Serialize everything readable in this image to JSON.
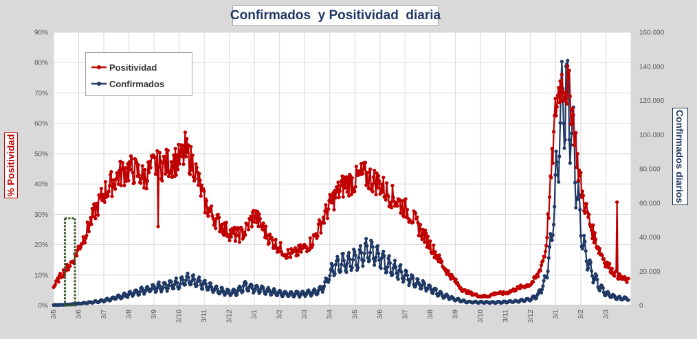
{
  "chart_data": {
    "type": "line",
    "title": "Confirmados  y Positividad  diaria",
    "ylabel_left": "% Positividad",
    "ylabel_right": "Confirmados diarios",
    "y_left_ticks": [
      "0%",
      "10%",
      "20%",
      "30%",
      "40%",
      "50%",
      "60%",
      "70%",
      "80%",
      "90%"
    ],
    "y_right_ticks": [
      "0",
      "20.000",
      "40.000",
      "60.000",
      "80.000",
      "100.000",
      "120.000",
      "140.000",
      "160.000"
    ],
    "x_ticks": [
      "3/5",
      "3/6",
      "3/7",
      "3/8",
      "3/9",
      "3/10",
      "3/11",
      "3/12",
      "3/1",
      "3/2",
      "3/3",
      "3/4",
      "3/5",
      "3/6",
      "3/7",
      "3/8",
      "3/9",
      "3/10",
      "3/11",
      "3/12",
      "3/1",
      "3/2",
      "3/3"
    ],
    "ylim_left": [
      0,
      90
    ],
    "ylim_right": [
      0,
      160000
    ],
    "legend": {
      "position": "top-left"
    },
    "grid": true,
    "colors": {
      "positividad": "#c00000",
      "confirmados": "#1f3864",
      "highlight": "#375623"
    },
    "series": [
      {
        "name": "Positividad",
        "axis": "left",
        "unit": "%",
        "anchors_month_value": [
          [
            0,
            6
          ],
          [
            0.3,
            10
          ],
          [
            0.6,
            13
          ],
          [
            0.8,
            15
          ],
          [
            1.0,
            19
          ],
          [
            1.3,
            24
          ],
          [
            1.6,
            30
          ],
          [
            2.0,
            37
          ],
          [
            2.3,
            40
          ],
          [
            2.6,
            43
          ],
          [
            3.0,
            45
          ],
          [
            3.3,
            44
          ],
          [
            3.6,
            42
          ],
          [
            4.0,
            46
          ],
          [
            4.3,
            46
          ],
          [
            4.6,
            47
          ],
          [
            5.0,
            48
          ],
          [
            5.3,
            50
          ],
          [
            5.6,
            46
          ],
          [
            5.8,
            40
          ],
          [
            6.0,
            34
          ],
          [
            6.3,
            30
          ],
          [
            6.6,
            27
          ],
          [
            7.0,
            24
          ],
          [
            7.3,
            23
          ],
          [
            7.6,
            24
          ],
          [
            8.0,
            30
          ],
          [
            8.3,
            26
          ],
          [
            8.6,
            22
          ],
          [
            9.0,
            19
          ],
          [
            9.3,
            17
          ],
          [
            9.6,
            17
          ],
          [
            10.0,
            19
          ],
          [
            10.3,
            21
          ],
          [
            10.6,
            26
          ],
          [
            11.0,
            33
          ],
          [
            11.3,
            37
          ],
          [
            11.6,
            40
          ],
          [
            12.0,
            41
          ],
          [
            12.3,
            43
          ],
          [
            12.6,
            42
          ],
          [
            13.0,
            40
          ],
          [
            13.3,
            37
          ],
          [
            13.6,
            35
          ],
          [
            14.0,
            32
          ],
          [
            14.3,
            29
          ],
          [
            14.6,
            25
          ],
          [
            15.0,
            20
          ],
          [
            15.3,
            16
          ],
          [
            15.6,
            12
          ],
          [
            16.0,
            8
          ],
          [
            16.3,
            5
          ],
          [
            16.6,
            4
          ],
          [
            17.0,
            3
          ],
          [
            17.3,
            3
          ],
          [
            17.6,
            4
          ],
          [
            18.0,
            4
          ],
          [
            18.3,
            5
          ],
          [
            18.6,
            6
          ],
          [
            19.0,
            7
          ],
          [
            19.3,
            10
          ],
          [
            19.6,
            18
          ],
          [
            19.8,
            40
          ],
          [
            20.0,
            65
          ],
          [
            20.2,
            74
          ],
          [
            20.5,
            72
          ],
          [
            20.7,
            62
          ],
          [
            20.9,
            45
          ],
          [
            21.1,
            35
          ],
          [
            21.4,
            26
          ],
          [
            21.7,
            19
          ],
          [
            22.0,
            14
          ],
          [
            22.3,
            11
          ],
          [
            22.6,
            9
          ],
          [
            22.9,
            8
          ]
        ],
        "spikes_month_value": [
          [
            4.15,
            26
          ],
          [
            5.25,
            57
          ],
          [
            22.45,
            34
          ]
        ]
      },
      {
        "name": "Confirmados",
        "axis": "right",
        "unit": "casos",
        "anchors_month_value": [
          [
            0,
            200
          ],
          [
            0.5,
            400
          ],
          [
            1.0,
            1000
          ],
          [
            1.5,
            1800
          ],
          [
            2.0,
            2800
          ],
          [
            2.5,
            4500
          ],
          [
            3.0,
            6500
          ],
          [
            3.5,
            8500
          ],
          [
            4.0,
            10500
          ],
          [
            4.5,
            11500
          ],
          [
            5.0,
            13000
          ],
          [
            5.3,
            15000
          ],
          [
            5.6,
            14000
          ],
          [
            6.0,
            12000
          ],
          [
            6.5,
            9000
          ],
          [
            7.0,
            7500
          ],
          [
            7.3,
            8000
          ],
          [
            7.6,
            11500
          ],
          [
            8.0,
            10000
          ],
          [
            8.5,
            8500
          ],
          [
            9.0,
            7000
          ],
          [
            9.5,
            6500
          ],
          [
            10.0,
            7000
          ],
          [
            10.5,
            8000
          ],
          [
            10.8,
            12000
          ],
          [
            11.0,
            18000
          ],
          [
            11.3,
            24000
          ],
          [
            11.6,
            25000
          ],
          [
            12.0,
            27000
          ],
          [
            12.3,
            30000
          ],
          [
            12.6,
            32000
          ],
          [
            13.0,
            28000
          ],
          [
            13.3,
            24000
          ],
          [
            13.6,
            21000
          ],
          [
            14.0,
            17000
          ],
          [
            14.5,
            13000
          ],
          [
            15.0,
            10000
          ],
          [
            15.5,
            6000
          ],
          [
            16.0,
            3500
          ],
          [
            16.5,
            2000
          ],
          [
            17.0,
            1800
          ],
          [
            17.5,
            1800
          ],
          [
            18.0,
            2000
          ],
          [
            18.5,
            2500
          ],
          [
            19.0,
            3500
          ],
          [
            19.3,
            6000
          ],
          [
            19.6,
            15000
          ],
          [
            19.8,
            35000
          ],
          [
            20.0,
            70000
          ],
          [
            20.2,
            110000
          ],
          [
            20.35,
            125000
          ],
          [
            20.5,
            120000
          ],
          [
            20.7,
            95000
          ],
          [
            20.9,
            60000
          ],
          [
            21.1,
            35000
          ],
          [
            21.4,
            20000
          ],
          [
            21.7,
            12000
          ],
          [
            22.0,
            7000
          ],
          [
            22.3,
            5000
          ],
          [
            22.6,
            4000
          ],
          [
            22.9,
            4000
          ]
        ],
        "spikes_month_value": [
          [
            20.4,
            140000
          ]
        ]
      }
    ],
    "highlight_region_month": [
      0.45,
      0.85
    ]
  }
}
